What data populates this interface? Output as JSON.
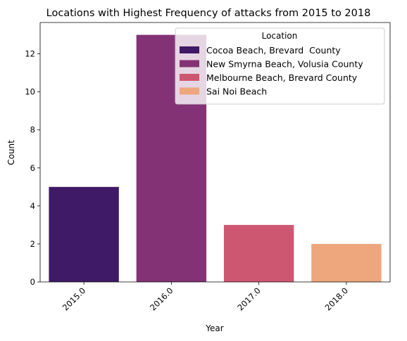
{
  "chart_data": {
    "type": "bar",
    "title": "Locations with Highest Frequency of attacks from 2015 to 2018",
    "xlabel": "Year",
    "ylabel": "Count",
    "categories": [
      "2015.0",
      "2016.0",
      "2017.0",
      "2018.0"
    ],
    "series": [
      {
        "name": "Cocoa Beach, Brevard  County",
        "color": "#3f1a66",
        "category": "2015.0",
        "value": 5
      },
      {
        "name": "New Smyrna Beach, Volusia County",
        "color": "#833375",
        "category": "2016.0",
        "value": 13
      },
      {
        "name": "Melbourne Beach, Brevard County",
        "color": "#cd5771",
        "category": "2017.0",
        "value": 3
      },
      {
        "name": "Sai Noi Beach",
        "color": "#eea67d",
        "category": "2018.0",
        "value": 2
      }
    ],
    "ylim": [
      0,
      13.65
    ],
    "yticks": [
      0,
      2,
      4,
      6,
      8,
      10,
      12
    ],
    "grid": false,
    "legend": {
      "title": "Location",
      "placement": "top-right"
    }
  }
}
